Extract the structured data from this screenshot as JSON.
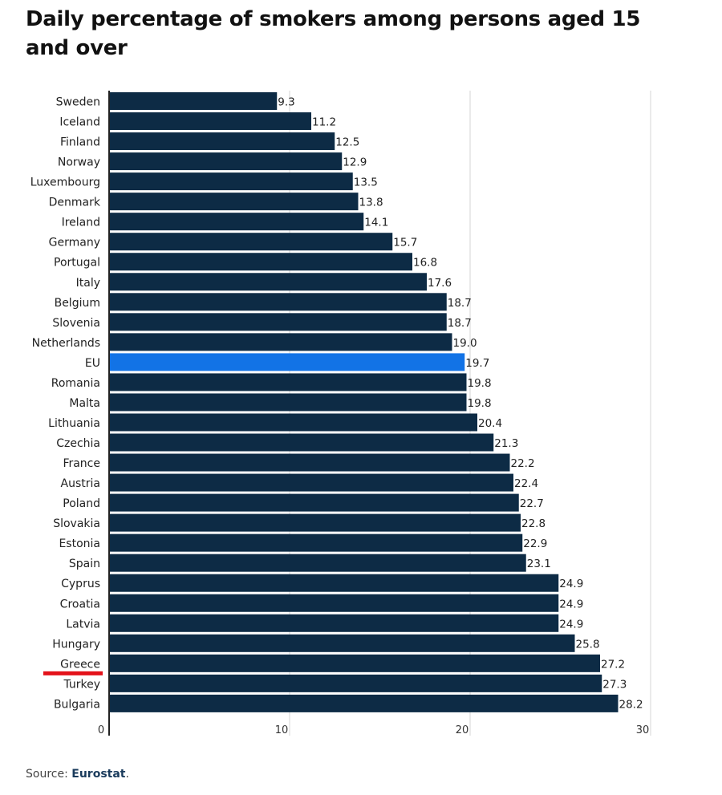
{
  "title": "Daily percentage of smokers among persons aged 15 and over",
  "source": {
    "prefix": "Source: ",
    "name": "Eurostat",
    "suffix": "."
  },
  "colors": {
    "bar": "#0d2b45",
    "highlight": "#1273e6",
    "axis": "#222222",
    "grid": "#d6d6d6",
    "marker": "#e3121a"
  },
  "highlighted_category": "EU",
  "marked_category": "Greece",
  "chart_data": {
    "type": "bar",
    "orientation": "horizontal",
    "categories": [
      "Sweden",
      "Iceland",
      "Finland",
      "Norway",
      "Luxembourg",
      "Denmark",
      "Ireland",
      "Germany",
      "Portugal",
      "Italy",
      "Belgium",
      "Slovenia",
      "Netherlands",
      "EU",
      "Romania",
      "Malta",
      "Lithuania",
      "Czechia",
      "France",
      "Austria",
      "Poland",
      "Slovakia",
      "Estonia",
      "Spain",
      "Cyprus",
      "Croatia",
      "Latvia",
      "Hungary",
      "Greece",
      "Turkey",
      "Bulgaria"
    ],
    "values": [
      9.3,
      11.2,
      12.5,
      12.9,
      13.5,
      13.8,
      14.1,
      15.7,
      16.8,
      17.6,
      18.7,
      18.7,
      19.0,
      19.7,
      19.8,
      19.8,
      20.4,
      21.3,
      22.2,
      22.4,
      22.7,
      22.8,
      22.9,
      23.1,
      24.9,
      24.9,
      24.9,
      25.8,
      27.2,
      27.3,
      28.2
    ],
    "value_labels": [
      "9.3",
      "11.2",
      "12.5",
      "12.9",
      "13.5",
      "13.8",
      "14.1",
      "15.7",
      "16.8",
      "17.6",
      "18.7",
      "18.7",
      "19.0",
      "19.7",
      "19.8",
      "19.8",
      "20.4",
      "21.3",
      "22.2",
      "22.4",
      "22.7",
      "22.8",
      "22.9",
      "23.1",
      "24.9",
      "24.9",
      "24.9",
      "25.8",
      "27.2",
      "27.3",
      "28.2"
    ],
    "xlim": [
      0,
      30
    ],
    "xticks": [
      0,
      10,
      20,
      30
    ],
    "grid": true,
    "xlabel": "",
    "ylabel": ""
  }
}
